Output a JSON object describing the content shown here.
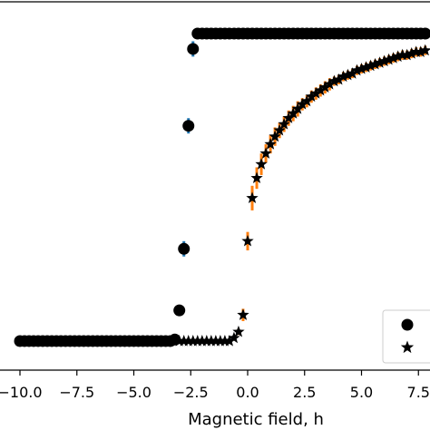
{
  "chart_data": {
    "type": "scatter",
    "xlabel": "Magnetic field, h",
    "ylabel": "",
    "title": "",
    "xlim": [
      -11.0,
      8.0
    ],
    "ylim": [
      -1.25,
      1.25
    ],
    "x_ticks": [
      "−10.0",
      "−7.5",
      "−5.0",
      "−2.5",
      "0.0",
      "2.5",
      "5.0",
      "7.5"
    ],
    "x_tick_values": [
      -10.0,
      -7.5,
      -5.0,
      -2.5,
      0.0,
      2.5,
      5.0,
      7.5
    ],
    "grid": false,
    "legend_placement": "lower-right",
    "colors": {
      "markers": "#000000",
      "circle_errorbar": "#1f77b4",
      "star_errorbar": "#ff7f0e"
    },
    "series": [
      {
        "marker": "circle",
        "x": [
          -10.0,
          -9.8,
          -9.6,
          -9.4,
          -9.2,
          -9.0,
          -8.8,
          -8.6,
          -8.4,
          -8.2,
          -8.0,
          -7.8,
          -7.6,
          -7.4,
          -7.2,
          -7.0,
          -6.8,
          -6.6,
          -6.4,
          -6.2,
          -6.0,
          -5.8,
          -5.6,
          -5.4,
          -5.2,
          -5.0,
          -4.8,
          -4.6,
          -4.4,
          -4.2,
          -4.0,
          -3.8,
          -3.6,
          -3.4,
          -3.2,
          -3.0,
          -2.8,
          -2.6,
          -2.4,
          -2.2,
          -2.0,
          -1.8,
          -1.6,
          -1.4,
          -1.2,
          -1.0,
          -0.8,
          -0.6,
          -0.4,
          -0.2,
          0.0,
          0.2,
          0.4,
          0.6,
          0.8,
          1.0,
          1.2,
          1.4,
          1.6,
          1.8,
          2.0,
          2.2,
          2.4,
          2.6,
          2.8,
          3.0,
          3.2,
          3.4,
          3.6,
          3.8,
          4.0,
          4.2,
          4.4,
          4.6,
          4.8,
          5.0,
          5.2,
          5.4,
          5.6,
          5.8,
          6.0,
          6.2,
          6.4,
          6.6,
          6.8,
          7.0,
          7.2,
          7.4,
          7.6,
          7.8
        ],
        "y": [
          -1.0,
          -1.0,
          -1.0,
          -1.0,
          -1.0,
          -1.0,
          -1.0,
          -1.0,
          -1.0,
          -1.0,
          -1.0,
          -1.0,
          -1.0,
          -1.0,
          -1.0,
          -1.0,
          -1.0,
          -1.0,
          -1.0,
          -1.0,
          -1.0,
          -1.0,
          -1.0,
          -1.0,
          -1.0,
          -1.0,
          -1.0,
          -1.0,
          -1.0,
          -1.0,
          -1.0,
          -1.0,
          -1.0,
          -1.0,
          -0.99,
          -0.8,
          -0.4,
          0.4,
          0.9,
          1.0,
          1.0,
          1.0,
          1.0,
          1.0,
          1.0,
          1.0,
          1.0,
          1.0,
          1.0,
          1.0,
          1.0,
          1.0,
          1.0,
          1.0,
          1.0,
          1.0,
          1.0,
          1.0,
          1.0,
          1.0,
          1.0,
          1.0,
          1.0,
          1.0,
          1.0,
          1.0,
          1.0,
          1.0,
          1.0,
          1.0,
          1.0,
          1.0,
          1.0,
          1.0,
          1.0,
          1.0,
          1.0,
          1.0,
          1.0,
          1.0,
          1.0,
          1.0,
          1.0,
          1.0,
          1.0,
          1.0,
          1.0,
          1.0,
          1.0,
          1.0
        ],
        "yerr": [
          0,
          0,
          0,
          0,
          0,
          0,
          0,
          0,
          0,
          0,
          0,
          0,
          0,
          0,
          0,
          0,
          0,
          0,
          0,
          0,
          0,
          0,
          0,
          0,
          0,
          0,
          0,
          0,
          0,
          0,
          0,
          0,
          0,
          0,
          0,
          0,
          0.05,
          0.05,
          0.05,
          0,
          0,
          0,
          0,
          0,
          0,
          0,
          0,
          0,
          0,
          0,
          0,
          0,
          0,
          0,
          0,
          0,
          0,
          0,
          0,
          0,
          0,
          0,
          0,
          0,
          0,
          0,
          0,
          0,
          0,
          0,
          0,
          0,
          0,
          0,
          0,
          0,
          0,
          0,
          0,
          0,
          0,
          0,
          0,
          0,
          0,
          0,
          0,
          0,
          0,
          0
        ]
      },
      {
        "marker": "star",
        "x": [
          -3.0,
          -2.8,
          -2.6,
          -2.4,
          -2.2,
          -2.0,
          -1.8,
          -1.6,
          -1.4,
          -1.2,
          -1.0,
          -0.8,
          -0.6,
          -0.4,
          -0.2,
          0.0,
          0.2,
          0.4,
          0.6,
          0.8,
          1.0,
          1.2,
          1.4,
          1.6,
          1.8,
          2.0,
          2.2,
          2.4,
          2.6,
          2.8,
          3.0,
          3.2,
          3.4,
          3.6,
          3.8,
          4.0,
          4.2,
          4.4,
          4.6,
          4.8,
          5.0,
          5.2,
          5.4,
          5.6,
          5.8,
          6.0,
          6.2,
          6.4,
          6.6,
          6.8,
          7.0,
          7.2,
          7.4,
          7.6,
          7.8
        ],
        "y": [
          -1.0,
          -1.0,
          -1.0,
          -1.0,
          -1.0,
          -1.0,
          -1.0,
          -1.0,
          -1.0,
          -1.0,
          -1.0,
          -1.0,
          -0.98,
          -0.94,
          -0.83,
          -0.35,
          -0.07,
          0.06,
          0.15,
          0.22,
          0.28,
          0.33,
          0.37,
          0.41,
          0.45,
          0.48,
          0.51,
          0.54,
          0.56,
          0.59,
          0.61,
          0.63,
          0.65,
          0.67,
          0.69,
          0.7,
          0.72,
          0.73,
          0.74,
          0.76,
          0.77,
          0.78,
          0.79,
          0.8,
          0.81,
          0.82,
          0.83,
          0.84,
          0.85,
          0.86,
          0.86,
          0.87,
          0.88,
          0.88,
          0.89
        ],
        "yerr": [
          0,
          0,
          0,
          0,
          0,
          0,
          0,
          0,
          0,
          0,
          0,
          0,
          0.01,
          0.02,
          0.04,
          0.06,
          0.08,
          0.07,
          0.07,
          0.06,
          0.06,
          0.06,
          0.05,
          0.05,
          0.05,
          0.05,
          0.05,
          0.04,
          0.04,
          0.04,
          0.04,
          0.04,
          0.04,
          0.04,
          0.03,
          0.03,
          0.03,
          0.03,
          0.03,
          0.03,
          0.03,
          0.03,
          0.03,
          0.03,
          0.03,
          0.03,
          0.03,
          0.03,
          0.03,
          0.03,
          0.03,
          0.03,
          0.03,
          0.03,
          0.03
        ]
      }
    ]
  }
}
